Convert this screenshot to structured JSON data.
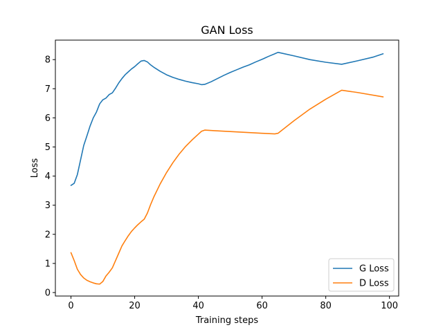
{
  "chart_data": {
    "type": "line",
    "title": "GAN Loss",
    "xlabel": "Training steps",
    "ylabel": "Loss",
    "xlim": [
      -4.9,
      102.9
    ],
    "ylim": [
      -0.12,
      8.67
    ],
    "xticks": [
      0,
      20,
      40,
      60,
      80,
      100
    ],
    "yticks": [
      0,
      1,
      2,
      3,
      4,
      5,
      6,
      7,
      8
    ],
    "grid": false,
    "legend_position": "lower-right",
    "series": [
      {
        "name": "G Loss",
        "color": "#1f77b4",
        "x": [
          0,
          1,
          2,
          3,
          4,
          5,
          6,
          7,
          8,
          9,
          10,
          11,
          12,
          13,
          14,
          15,
          16,
          17,
          18,
          19,
          20,
          21,
          22,
          23,
          24,
          25,
          26,
          28,
          30,
          32,
          34,
          36,
          38,
          40,
          41,
          42,
          44,
          46,
          48,
          50,
          52,
          54,
          56,
          58,
          60,
          62,
          64,
          65,
          70,
          75,
          80,
          85,
          90,
          95,
          98
        ],
        "y": [
          3.68,
          3.75,
          4.05,
          4.55,
          5.05,
          5.38,
          5.72,
          6.0,
          6.2,
          6.48,
          6.62,
          6.68,
          6.8,
          6.86,
          7.02,
          7.2,
          7.35,
          7.48,
          7.58,
          7.68,
          7.76,
          7.86,
          7.95,
          7.97,
          7.92,
          7.82,
          7.74,
          7.6,
          7.48,
          7.39,
          7.32,
          7.26,
          7.21,
          7.17,
          7.14,
          7.15,
          7.24,
          7.35,
          7.46,
          7.56,
          7.65,
          7.74,
          7.82,
          7.92,
          8.01,
          8.11,
          8.2,
          8.25,
          8.13,
          8.0,
          7.91,
          7.84,
          7.96,
          8.09,
          8.2
        ]
      },
      {
        "name": "D Loss",
        "color": "#ff7f0e",
        "x": [
          0,
          1,
          2,
          3,
          4,
          5,
          6,
          7,
          8,
          9,
          10,
          11,
          12,
          13,
          14,
          15,
          16,
          17,
          18,
          19,
          20,
          21,
          22,
          23,
          24,
          25,
          26,
          28,
          30,
          32,
          34,
          36,
          38,
          40,
          41,
          42,
          45,
          50,
          55,
          60,
          64,
          65,
          70,
          75,
          80,
          85,
          90,
          98
        ],
        "y": [
          1.37,
          1.1,
          0.8,
          0.62,
          0.5,
          0.42,
          0.37,
          0.33,
          0.3,
          0.29,
          0.38,
          0.57,
          0.7,
          0.85,
          1.1,
          1.35,
          1.6,
          1.78,
          1.95,
          2.1,
          2.22,
          2.33,
          2.43,
          2.52,
          2.73,
          3.02,
          3.28,
          3.73,
          4.12,
          4.46,
          4.76,
          5.02,
          5.24,
          5.44,
          5.54,
          5.58,
          5.56,
          5.53,
          5.5,
          5.47,
          5.45,
          5.47,
          5.9,
          6.3,
          6.64,
          6.95,
          6.87,
          6.72
        ]
      }
    ]
  }
}
